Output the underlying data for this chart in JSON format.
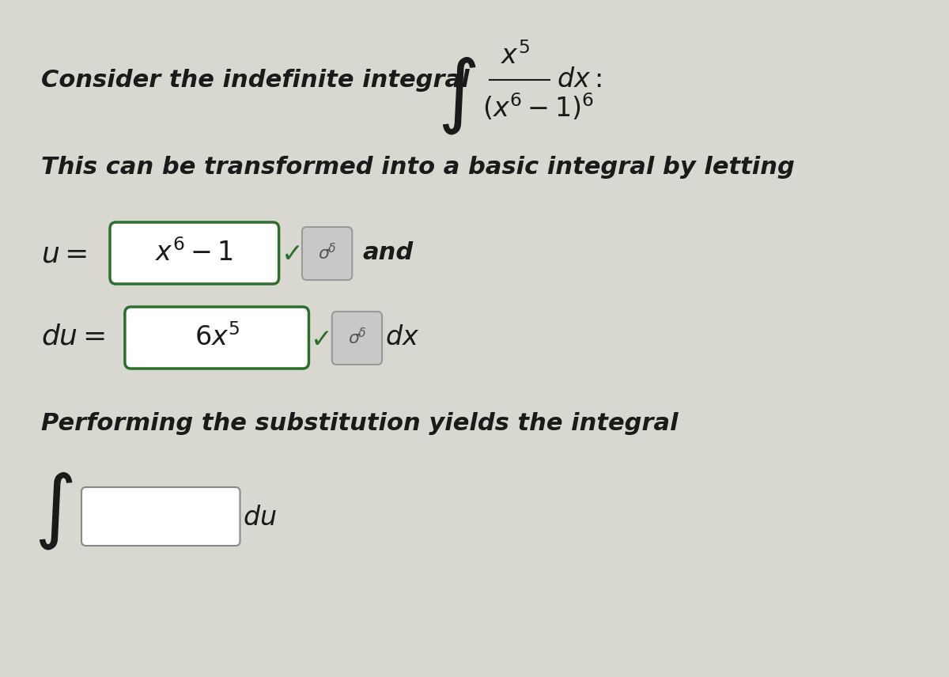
{
  "bg_color": "#d8d8d0",
  "text_color": "#1a1a1a",
  "green_color": "#2d6e2d",
  "gray_box_color": "#c8c8c8",
  "line1": "Consider the indefinite integral",
  "line2": "This can be transformed into a basic integral by letting",
  "line3": "Performing the substitution yields the integral",
  "u_label": "u =",
  "u_content": "$x^6 - 1$",
  "du_label": "du =",
  "du_content": "$6x^5$",
  "and_text": "and",
  "dx_text": "$dx$",
  "integral_top": "$x^5$",
  "integral_bottom": "$(x^6 - 1)^6$",
  "dx_after": "$dx$:",
  "font_size_main": 22,
  "font_size_math": 24,
  "font_size_box": 22
}
